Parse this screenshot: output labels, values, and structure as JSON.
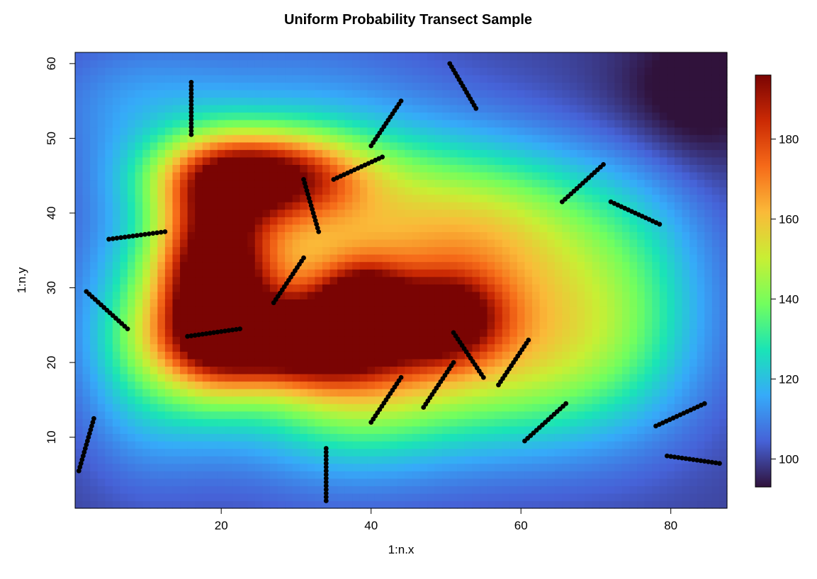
{
  "chart_data": {
    "type": "heatmap",
    "title": "Uniform Probability Transect Sample",
    "xlabel": "1:n.x",
    "ylabel": "1:n.y",
    "xlim": [
      0.5,
      87.5
    ],
    "ylim": [
      0.5,
      61.5
    ],
    "xticks": [
      20,
      40,
      60,
      80
    ],
    "yticks": [
      10,
      20,
      30,
      40,
      50,
      60
    ],
    "colorbar": {
      "min": 93,
      "max": 196,
      "ticks": [
        100,
        120,
        140,
        160,
        180
      ],
      "palette": [
        "#30123b",
        "#4662d7",
        "#36aaf9",
        "#1ae4b6",
        "#72fe5e",
        "#c8ef34",
        "#faba39",
        "#f66b19",
        "#cb2a04",
        "#7a0403"
      ]
    },
    "surface": {
      "base": 100,
      "bumps": [
        {
          "x": 19,
          "y": 31,
          "height": 85,
          "sx": 5,
          "sy": 9
        },
        {
          "x": 25,
          "y": 45,
          "height": 70,
          "sx": 9,
          "sy": 4
        },
        {
          "x": 30,
          "y": 23,
          "height": 70,
          "sx": 10,
          "sy": 4
        },
        {
          "x": 39,
          "y": 28,
          "height": 55,
          "sx": 4,
          "sy": 3.5
        },
        {
          "x": 50,
          "y": 26,
          "height": 50,
          "sx": 5,
          "sy": 4
        },
        {
          "x": 60,
          "y": 22,
          "height": 47,
          "sx": 12,
          "sy": 9
        },
        {
          "x": 55,
          "y": 38,
          "height": 42,
          "sx": 12,
          "sy": 8
        },
        {
          "x": 38,
          "y": 18,
          "height": 35,
          "sx": 10,
          "sy": 8
        },
        {
          "x": 30,
          "y": 35,
          "height": 45,
          "sx": 14,
          "sy": 14
        },
        {
          "x": 10,
          "y": 22,
          "height": 25,
          "sx": 6,
          "sy": 10
        },
        {
          "x": 75,
          "y": 30,
          "height": 18,
          "sx": 8,
          "sy": 12
        },
        {
          "x": 8,
          "y": 55,
          "height": 10,
          "sx": 8,
          "sy": 6
        },
        {
          "x": 84,
          "y": 56,
          "height": -8,
          "sx": 6,
          "sy": 8
        },
        {
          "x": 78,
          "y": 55,
          "height": -5,
          "sx": 8,
          "sy": 6
        }
      ]
    },
    "transects": [
      {
        "x1": 16,
        "y1": 57.5,
        "x2": 16,
        "y2": 50.5
      },
      {
        "x1": 50.5,
        "y1": 60,
        "x2": 54,
        "y2": 54
      },
      {
        "x1": 40,
        "y1": 49,
        "x2": 44,
        "y2": 55
      },
      {
        "x1": 35,
        "y1": 44.5,
        "x2": 41.5,
        "y2": 47.5
      },
      {
        "x1": 31,
        "y1": 44.5,
        "x2": 33,
        "y2": 37.5
      },
      {
        "x1": 65.5,
        "y1": 41.5,
        "x2": 71,
        "y2": 46.5
      },
      {
        "x1": 72,
        "y1": 41.5,
        "x2": 78.5,
        "y2": 38.5
      },
      {
        "x1": 5,
        "y1": 36.5,
        "x2": 12.5,
        "y2": 37.5
      },
      {
        "x1": 27,
        "y1": 28,
        "x2": 31,
        "y2": 34
      },
      {
        "x1": 2,
        "y1": 29.5,
        "x2": 7.5,
        "y2": 24.5
      },
      {
        "x1": 15.5,
        "y1": 23.5,
        "x2": 22.5,
        "y2": 24.5
      },
      {
        "x1": 51,
        "y1": 24,
        "x2": 55,
        "y2": 18
      },
      {
        "x1": 57,
        "y1": 17,
        "x2": 61,
        "y2": 23
      },
      {
        "x1": 47,
        "y1": 14,
        "x2": 51,
        "y2": 20
      },
      {
        "x1": 40,
        "y1": 12,
        "x2": 44,
        "y2": 18
      },
      {
        "x1": 60.5,
        "y1": 9.5,
        "x2": 66,
        "y2": 14.5
      },
      {
        "x1": 78,
        "y1": 11.5,
        "x2": 84.5,
        "y2": 14.5
      },
      {
        "x1": 79.5,
        "y1": 7.5,
        "x2": 86.5,
        "y2": 6.5
      },
      {
        "x1": 1,
        "y1": 5.5,
        "x2": 3,
        "y2": 12.5
      },
      {
        "x1": 34,
        "y1": 8.5,
        "x2": 34,
        "y2": 1.5
      }
    ]
  }
}
